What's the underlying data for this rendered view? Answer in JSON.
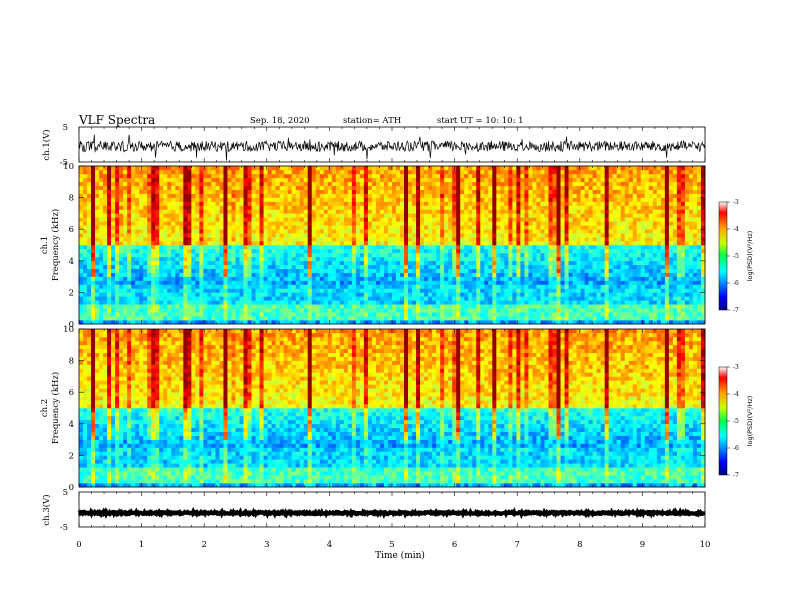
{
  "header": {
    "title": "VLF Spectra",
    "date": "Sep. 18, 2020",
    "station": "station= ATH",
    "start": "start  UT =   10: 10: 1"
  },
  "panels": {
    "ch1_wave": {
      "ylabel": "ch.1(V)",
      "ticks": [
        "5",
        "-5"
      ]
    },
    "ch1_spec": {
      "ylabel_ch": "ch.1",
      "ylabel": "Frequency (kHz)"
    },
    "ch2_spec": {
      "ylabel_ch": "ch.2",
      "ylabel": "Frequency (kHz)"
    },
    "ch3_wave": {
      "ylabel": "ch.3(V)",
      "ticks": [
        "5",
        "-5"
      ]
    }
  },
  "colorbar": {
    "label": "log(PSD)(V²/Hz)",
    "ticks": [
      "-3",
      "-4",
      "-5",
      "-6",
      "-7"
    ]
  },
  "chart_data": [
    {
      "type": "line",
      "name": "ch1-waveform",
      "ylabel": "ch.1(V)",
      "ylim": [
        -5,
        5
      ],
      "xlim": [
        0,
        10
      ],
      "description_values": {
        "baseline": -0.5,
        "typical_amplitude": 1.5
      }
    },
    {
      "type": "heatmap",
      "name": "ch1-spectrogram",
      "xlabel": "Time (min)",
      "ylabel": "Frequency (kHz)",
      "xlim": [
        0,
        10
      ],
      "ylim": [
        0,
        10
      ],
      "yticks": [
        0,
        2,
        4,
        6,
        8,
        10
      ],
      "color_scale": {
        "min": -7,
        "max": -3,
        "colormap": "jet"
      }
    },
    {
      "type": "heatmap",
      "name": "ch2-spectrogram",
      "xlabel": "Time (min)",
      "ylabel": "Frequency (kHz)",
      "xlim": [
        0,
        10
      ],
      "ylim": [
        0,
        10
      ],
      "yticks": [
        0,
        2,
        4,
        6,
        8,
        10
      ],
      "color_scale": {
        "min": -7,
        "max": -3,
        "colormap": "jet"
      }
    },
    {
      "type": "line",
      "name": "ch3-waveform",
      "ylabel": "ch.3(V)",
      "ylim": [
        -5,
        5
      ],
      "xlim": [
        0,
        10
      ],
      "description_values": {
        "baseline": -1,
        "typical_amplitude": 0.3
      }
    }
  ],
  "xaxis": {
    "label": "Time (min)",
    "ticks": [
      "0",
      "1",
      "2",
      "3",
      "4",
      "5",
      "6",
      "7",
      "8",
      "9",
      "10"
    ]
  },
  "spec_yticks": [
    "0",
    "2",
    "4",
    "6",
    "8",
    "10"
  ]
}
